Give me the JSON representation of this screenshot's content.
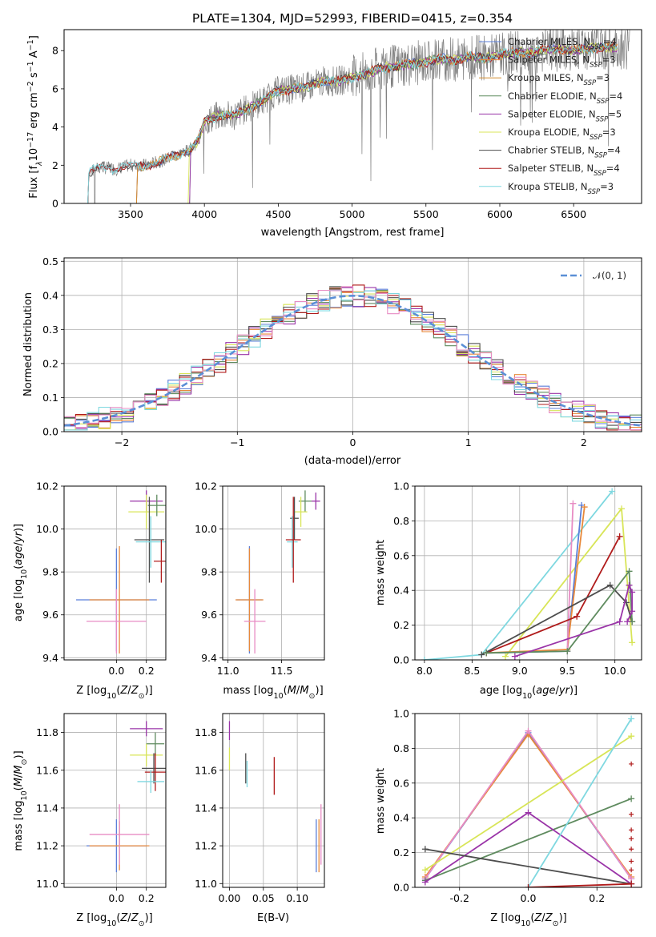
{
  "figure": {
    "title": "PLATE=1304, MJD=52993, FIBERID=0415, z=0.354",
    "colors": {
      "Chabrier MILES": "#5b7fd9",
      "Salpeter MILES": "#e8893b",
      "Kroupa MILES": "#d08a2f",
      "Chabrier ELODIE": "#5f8b5f",
      "Salpeter ELODIE": "#9a34a8",
      "Kroupa ELODIE": "#d8e558",
      "Chabrier STELIB": "#4d4d4d",
      "Salpeter STELIB": "#b01b1b",
      "Kroupa STELIB": "#7fd8e0",
      "pink": "#e88cc4",
      "normal": "#5b8fd6"
    }
  },
  "chart_data": [
    {
      "id": "spectrum",
      "type": "line",
      "xlabel": "wavelength [Angstrom, rest frame]",
      "ylabel_parts": [
        "Flux [f",
        "λ",
        "10",
        "−17",
        " erg cm",
        "−2",
        " s",
        "−1",
        " A",
        "−1",
        "]"
      ],
      "xlim": [
        3050,
        6960
      ],
      "ylim": [
        0,
        9.1
      ],
      "xticks": [
        3500,
        4000,
        4500,
        5000,
        5500,
        6000,
        6500
      ],
      "yticks": [
        0,
        2,
        4,
        6,
        8
      ],
      "anchors": [
        [
          3210,
          1.6
        ],
        [
          3300,
          1.9
        ],
        [
          3400,
          1.8
        ],
        [
          3500,
          2.0
        ],
        [
          3600,
          2.0
        ],
        [
          3700,
          2.2
        ],
        [
          3800,
          2.5
        ],
        [
          3900,
          2.8
        ],
        [
          3960,
          3.3
        ],
        [
          4000,
          4.3
        ],
        [
          4100,
          4.6
        ],
        [
          4200,
          4.6
        ],
        [
          4300,
          5.0
        ],
        [
          4400,
          5.4
        ],
        [
          4500,
          5.9
        ],
        [
          4600,
          6.0
        ],
        [
          4700,
          6.1
        ],
        [
          4800,
          6.4
        ],
        [
          4900,
          6.4
        ],
        [
          5000,
          6.6
        ],
        [
          5100,
          6.8
        ],
        [
          5200,
          7.1
        ],
        [
          5300,
          7.2
        ],
        [
          5400,
          7.3
        ],
        [
          5500,
          7.4
        ],
        [
          5600,
          7.6
        ],
        [
          5700,
          7.5
        ],
        [
          5800,
          7.7
        ],
        [
          5900,
          7.6
        ],
        [
          6000,
          7.8
        ],
        [
          6100,
          7.9
        ],
        [
          6200,
          7.9
        ],
        [
          6300,
          8.0
        ],
        [
          6400,
          8.1
        ],
        [
          6500,
          8.0
        ],
        [
          6600,
          8.1
        ],
        [
          6700,
          8.2
        ],
        [
          6800,
          8.2
        ]
      ],
      "model_starts": [
        {
          "name": "Chabrier MILES",
          "start": 3540
        },
        {
          "name": "Salpeter MILES",
          "start": 3540
        },
        {
          "name": "Kroupa MILES",
          "start": 3540
        },
        {
          "name": "Chabrier ELODIE",
          "start": 3900
        },
        {
          "name": "Salpeter ELODIE",
          "start": 3900
        },
        {
          "name": "Kroupa ELODIE",
          "start": 3890
        },
        {
          "name": "Chabrier STELIB",
          "start": 3210
        },
        {
          "name": "Salpeter STELIB",
          "start": 3210
        },
        {
          "name": "Kroupa STELIB",
          "start": 3210
        }
      ],
      "legend": [
        {
          "name": "Chabrier MILES",
          "n": "4"
        },
        {
          "name": "Salpeter MILES",
          "n": "3"
        },
        {
          "name": "Kroupa MILES",
          "n": "3"
        },
        {
          "name": "Chabrier ELODIE",
          "n": "4"
        },
        {
          "name": "Salpeter ELODIE",
          "n": "5"
        },
        {
          "name": "Kroupa ELODIE",
          "n": "3"
        },
        {
          "name": "Chabrier STELIB",
          "n": "4"
        },
        {
          "name": "Salpeter STELIB",
          "n": "4"
        },
        {
          "name": "Kroupa STELIB",
          "n": "3"
        }
      ],
      "legend_placement": "right"
    },
    {
      "id": "residuals",
      "type": "histogram",
      "xlabel": "(data-model)/error",
      "ylabel": "Normed distribution",
      "xlim": [
        -2.5,
        2.5
      ],
      "ylim": [
        0,
        0.51
      ],
      "xticks": [
        -2,
        -1,
        0,
        1,
        2
      ],
      "yticks": [
        0.0,
        0.1,
        0.2,
        0.3,
        0.4,
        0.5
      ],
      "bin_width": 0.1,
      "grid": true,
      "normal_curve": {
        "mean": 0,
        "sigma": 1,
        "legend": "N(0, 1)"
      },
      "legend_placement": "top-right"
    },
    {
      "id": "age_vs_Z",
      "type": "errorbar",
      "xlabel": "Z [log10(Z/Z⊙)]",
      "ylabel": "age  [log10(age/yr)]",
      "xlim": [
        -0.35,
        0.33
      ],
      "ylim": [
        9.39,
        10.2
      ],
      "xticks": [
        0.0,
        0.2
      ],
      "yticks": [
        9.4,
        9.6,
        9.8,
        10.0,
        10.2
      ],
      "points": [
        {
          "c": "Chabrier MILES",
          "x": 0.0,
          "xe": 0.27,
          "y": 9.67,
          "ye": 0.24
        },
        {
          "c": "Salpeter MILES",
          "x": 0.02,
          "xe": 0.2,
          "y": 9.67,
          "ye": 0.25
        },
        {
          "c": "pink",
          "x": 0.0,
          "xe": 0.2,
          "y": 9.57,
          "ye": 0.15
        },
        {
          "c": "Salpeter ELODIE",
          "x": 0.2,
          "xe": 0.11,
          "y": 10.13,
          "ye": 0.05
        },
        {
          "c": "Kroupa ELODIE",
          "x": 0.2,
          "xe": 0.12,
          "y": 10.08,
          "ye": 0.08
        },
        {
          "c": "Chabrier ELODIE",
          "x": 0.27,
          "xe": 0.06,
          "y": 10.11,
          "ye": 0.05
        },
        {
          "c": "Chabrier STELIB",
          "x": 0.22,
          "xe": 0.1,
          "y": 9.95,
          "ye": 0.2
        },
        {
          "c": "Kroupa STELIB",
          "x": 0.23,
          "xe": 0.1,
          "y": 9.94,
          "ye": 0.12
        },
        {
          "c": "Salpeter STELIB",
          "x": 0.3,
          "xe": 0.05,
          "y": 9.85,
          "ye": 0.1
        }
      ]
    },
    {
      "id": "age_vs_mass",
      "type": "errorbar",
      "xlabel": "mass [log10(M/M⊙)]",
      "ylabel": "",
      "xlim": [
        10.95,
        11.9
      ],
      "ylim": [
        9.39,
        10.2
      ],
      "xticks": [
        11.0,
        11.5
      ],
      "yticks": [
        9.4,
        9.6,
        9.8,
        10.0,
        10.2
      ],
      "points": [
        {
          "c": "Chabrier MILES",
          "x": 11.2,
          "xe": 0.12,
          "y": 9.67,
          "ye": 0.25
        },
        {
          "c": "Salpeter MILES",
          "x": 11.2,
          "xe": 0.13,
          "y": 9.67,
          "ye": 0.24
        },
        {
          "c": "pink",
          "x": 11.25,
          "xe": 0.1,
          "y": 9.57,
          "ye": 0.15
        },
        {
          "c": "Salpeter ELODIE",
          "x": 11.82,
          "xe": 0.04,
          "y": 10.13,
          "ye": 0.04
        },
        {
          "c": "Chabrier ELODIE",
          "x": 11.72,
          "xe": 0.06,
          "y": 10.13,
          "ye": 0.05
        },
        {
          "c": "Kroupa ELODIE",
          "x": 11.68,
          "xe": 0.06,
          "y": 10.08,
          "ye": 0.07
        },
        {
          "c": "Chabrier STELIB",
          "x": 11.62,
          "xe": 0.04,
          "y": 10.05,
          "ye": 0.1
        },
        {
          "c": "Kroupa STELIB",
          "x": 11.6,
          "xe": 0.05,
          "y": 9.94,
          "ye": 0.12
        },
        {
          "c": "Salpeter STELIB",
          "x": 11.61,
          "xe": 0.07,
          "y": 9.95,
          "ye": 0.2
        }
      ]
    },
    {
      "id": "weight_vs_age",
      "type": "line",
      "xlabel": "age  [log10(age/yr)]",
      "ylabel": "mass weight",
      "xlim": [
        7.9,
        10.28
      ],
      "ylim": [
        0,
        1.0
      ],
      "xticks": [
        8.0,
        8.5,
        9.0,
        9.5,
        10.0
      ],
      "yticks": [
        0.0,
        0.2,
        0.4,
        0.6,
        0.8,
        1.0
      ],
      "grid": true,
      "series": [
        {
          "c": "Kroupa STELIB",
          "pts": [
            [
              8.0,
              0.0
            ],
            [
              8.6,
              0.03
            ],
            [
              9.97,
              0.97
            ]
          ]
        },
        {
          "c": "Kroupa ELODIE",
          "pts": [
            [
              8.85,
              0.02
            ],
            [
              10.07,
              0.87
            ],
            [
              10.18,
              0.1
            ]
          ]
        },
        {
          "c": "Chabrier MILES",
          "pts": [
            [
              8.65,
              0.04
            ],
            [
              9.5,
              0.05
            ],
            [
              9.65,
              0.89
            ]
          ]
        },
        {
          "c": "Salpeter MILES",
          "pts": [
            [
              8.65,
              0.04
            ],
            [
              9.5,
              0.06
            ],
            [
              9.68,
              0.88
            ]
          ]
        },
        {
          "c": "pink",
          "pts": [
            [
              9.5,
              0.05
            ],
            [
              9.56,
              0.9
            ]
          ]
        },
        {
          "c": "Salpeter STELIB",
          "pts": [
            [
              8.65,
              0.04
            ],
            [
              9.6,
              0.25
            ],
            [
              10.05,
              0.71
            ]
          ]
        },
        {
          "c": "Chabrier STELIB",
          "pts": [
            [
              8.6,
              0.03
            ],
            [
              9.95,
              0.43
            ],
            [
              10.12,
              0.33
            ],
            [
              10.18,
              0.22
            ]
          ]
        },
        {
          "c": "Chabrier ELODIE",
          "pts": [
            [
              8.65,
              0.04
            ],
            [
              9.5,
              0.05
            ],
            [
              10.15,
              0.51
            ],
            [
              10.18,
              0.22
            ]
          ]
        },
        {
          "c": "Salpeter ELODIE",
          "pts": [
            [
              8.95,
              0.02
            ],
            [
              10.05,
              0.22
            ],
            [
              10.15,
              0.43
            ],
            [
              10.18,
              0.39
            ],
            [
              10.18,
              0.28
            ],
            [
              10.13,
              0.22
            ]
          ]
        }
      ]
    },
    {
      "id": "mass_vs_Z",
      "type": "errorbar",
      "xlabel": "Z [log10(Z/Z⊙)]",
      "ylabel": "mass [log10(M/M⊙)]",
      "xlim": [
        -0.35,
        0.33
      ],
      "ylim": [
        10.98,
        11.9
      ],
      "xticks": [
        0.0,
        0.2
      ],
      "yticks": [
        11.0,
        11.2,
        11.4,
        11.6,
        11.8
      ],
      "points": [
        {
          "c": "Chabrier MILES",
          "x": 0.0,
          "xe": 0.2,
          "y": 11.2,
          "ye": 0.14
        },
        {
          "c": "Salpeter MILES",
          "x": 0.02,
          "xe": 0.2,
          "y": 11.2,
          "ye": 0.13
        },
        {
          "c": "pink",
          "x": 0.02,
          "xe": 0.2,
          "y": 11.26,
          "ye": 0.16
        },
        {
          "c": "Salpeter ELODIE",
          "x": 0.2,
          "xe": 0.11,
          "y": 11.82,
          "ye": 0.04
        },
        {
          "c": "Chabrier ELODIE",
          "x": 0.26,
          "xe": 0.06,
          "y": 11.74,
          "ye": 0.06
        },
        {
          "c": "Kroupa ELODIE",
          "x": 0.2,
          "xe": 0.11,
          "y": 11.68,
          "ye": 0.06
        },
        {
          "c": "Chabrier STELIB",
          "x": 0.25,
          "xe": 0.08,
          "y": 11.61,
          "ye": 0.08
        },
        {
          "c": "Salpeter STELIB",
          "x": 0.26,
          "xe": 0.07,
          "y": 11.59,
          "ye": 0.1
        },
        {
          "c": "Kroupa STELIB",
          "x": 0.23,
          "xe": 0.09,
          "y": 11.54,
          "ye": 0.06
        }
      ]
    },
    {
      "id": "mass_vs_ebv",
      "type": "errorbar",
      "xlabel": "E(B-V)",
      "ylabel": "",
      "xlim": [
        -0.01,
        0.14
      ],
      "ylim": [
        10.98,
        11.9
      ],
      "xticks": [
        0.0,
        0.05,
        0.1
      ],
      "yticks": [
        11.0,
        11.2,
        11.4,
        11.6,
        11.8
      ],
      "points": [
        {
          "c": "Salpeter ELODIE",
          "x": 0.0,
          "xe": 0,
          "y": 11.81,
          "ye": 0.05
        },
        {
          "c": "Kroupa ELODIE",
          "x": 0.0,
          "xe": 0,
          "y": 11.66,
          "ye": 0.06
        },
        {
          "c": "Chabrier STELIB",
          "x": 0.024,
          "xe": 0,
          "y": 11.61,
          "ye": 0.08
        },
        {
          "c": "Kroupa STELIB",
          "x": 0.026,
          "xe": 0,
          "y": 11.58,
          "ye": 0.07
        },
        {
          "c": "Salpeter STELIB",
          "x": 0.066,
          "xe": 0,
          "y": 11.57,
          "ye": 0.1
        },
        {
          "c": "Chabrier MILES",
          "x": 0.128,
          "xe": 0,
          "y": 11.2,
          "ye": 0.14
        },
        {
          "c": "Salpeter MILES",
          "x": 0.132,
          "xe": 0,
          "y": 11.2,
          "ye": 0.14
        },
        {
          "c": "pink",
          "x": 0.135,
          "xe": 0,
          "y": 11.26,
          "ye": 0.16
        }
      ]
    },
    {
      "id": "weight_vs_Z",
      "type": "line",
      "xlabel": "Z [log10(Z/Z⊙)]",
      "ylabel": "mass weight",
      "xlim": [
        -0.33,
        0.33
      ],
      "ylim": [
        0,
        1.0
      ],
      "xticks": [
        -0.2,
        0.0,
        0.2
      ],
      "yticks": [
        0.0,
        0.2,
        0.4,
        0.6,
        0.8,
        1.0
      ],
      "grid": true,
      "series": [
        {
          "c": "Chabrier MILES",
          "pts": [
            [
              -0.3,
              0.05
            ],
            [
              0.0,
              0.89
            ],
            [
              0.3,
              0.05
            ]
          ]
        },
        {
          "c": "Salpeter MILES",
          "pts": [
            [
              -0.3,
              0.06
            ],
            [
              0.0,
              0.88
            ],
            [
              0.3,
              0.06
            ]
          ]
        },
        {
          "c": "pink",
          "pts": [
            [
              -0.3,
              0.05
            ],
            [
              0.0,
              0.9
            ],
            [
              0.3,
              0.05
            ]
          ]
        },
        {
          "c": "Kroupa ELODIE",
          "pts": [
            [
              -0.3,
              0.1
            ],
            [
              0.3,
              0.87
            ]
          ]
        },
        {
          "c": "Chabrier ELODIE",
          "pts": [
            [
              -0.3,
              0.04
            ],
            [
              0.3,
              0.51
            ]
          ]
        },
        {
          "c": "Salpeter ELODIE",
          "pts": [
            [
              -0.3,
              0.03
            ],
            [
              0.0,
              0.43
            ],
            [
              0.3,
              0.02
            ]
          ]
        },
        {
          "c": "Chabrier STELIB",
          "pts": [
            [
              -0.3,
              0.22
            ],
            [
              0.3,
              0.02
            ]
          ]
        },
        {
          "c": "Kroupa STELIB",
          "pts": [
            [
              0.0,
              0.0
            ],
            [
              0.3,
              0.97
            ]
          ]
        },
        {
          "c": "Salpeter STELIB",
          "pts": [
            [
              0.0,
              0.0
            ],
            [
              0.3,
              0.02
            ]
          ]
        }
      ],
      "edge_markers": [
        0.71,
        0.42,
        0.33,
        0.28,
        0.22,
        0.15,
        0.1
      ]
    }
  ]
}
